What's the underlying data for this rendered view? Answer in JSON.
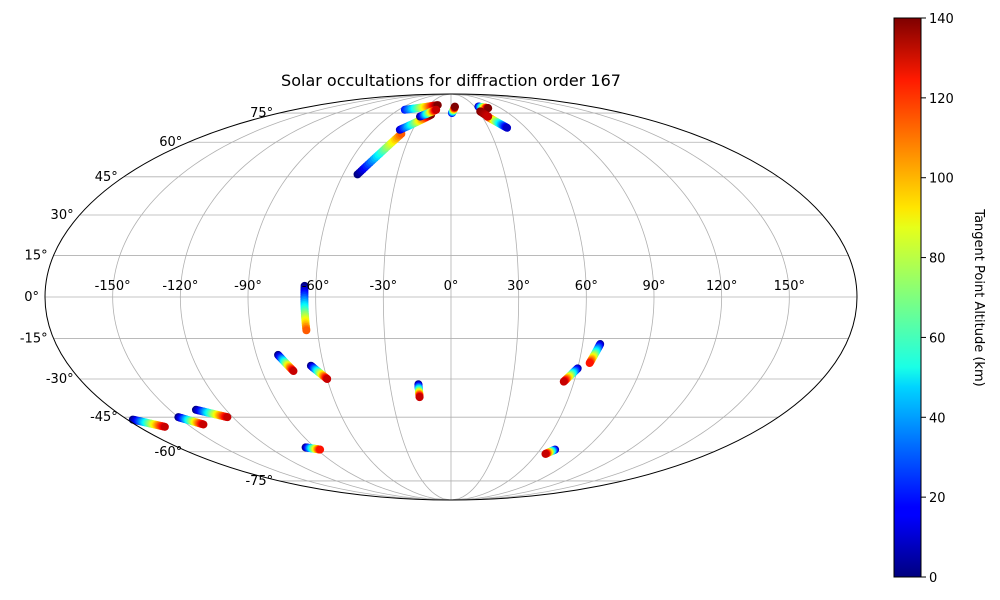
{
  "chart_data": {
    "type": "scatter",
    "projection": "mollweide",
    "title": "Solar occultations for diffraction order 167",
    "grid": true,
    "x_ticks": [
      "-150°",
      "-120°",
      "-90°",
      "-60°",
      "-30°",
      "0°",
      "30°",
      "60°",
      "90°",
      "120°",
      "150°"
    ],
    "x_tick_values": [
      -150,
      -120,
      -90,
      -60,
      -30,
      0,
      30,
      60,
      90,
      120,
      150
    ],
    "y_ticks": [
      "-75°",
      "-60°",
      "-45°",
      "-30°",
      "-15°",
      "0°",
      "15°",
      "30°",
      "45°",
      "60°",
      "75°"
    ],
    "y_tick_values": [
      -75,
      -60,
      -45,
      -30,
      -15,
      0,
      15,
      30,
      45,
      60,
      75
    ],
    "xlim": [
      -180,
      180
    ],
    "ylim": [
      -90,
      90
    ],
    "colorbar": {
      "label": "Tangent Point Altitude (km)",
      "colormap": "jet",
      "range": [
        0,
        140
      ],
      "ticks": [
        "0",
        "20",
        "40",
        "60",
        "80",
        "100",
        "120",
        "140"
      ],
      "tick_values": [
        0,
        20,
        40,
        60,
        80,
        100,
        120,
        140
      ]
    },
    "tracks": [
      {
        "lon_start": -65,
        "lat_start": 4,
        "alt_start": 0,
        "lon_end": -65,
        "lat_end": -12,
        "alt_end": 110
      },
      {
        "lon_start": -52,
        "lat_start": 46,
        "alt_start": 0,
        "lon_end": -37,
        "lat_end": 64,
        "alt_end": 110
      },
      {
        "lon_start": -53,
        "lat_start": 77,
        "alt_start": 20,
        "lon_end": -18,
        "lat_end": 80,
        "alt_end": 140
      },
      {
        "lon_start": -40,
        "lat_start": 66,
        "alt_start": 10,
        "lon_end": -20,
        "lat_end": 74,
        "alt_end": 140
      },
      {
        "lon_start": -30,
        "lat_start": 73,
        "alt_start": 0,
        "lon_end": -17,
        "lat_end": 77,
        "alt_end": 130
      },
      {
        "lon_start": 1,
        "lat_start": 75,
        "alt_start": 15,
        "lon_end": 5,
        "lat_end": 79,
        "alt_end": 140
      },
      {
        "lon_start": 35,
        "lat_start": 79,
        "alt_start": 5,
        "lon_end": 45,
        "lat_end": 78,
        "alt_end": 140
      },
      {
        "lon_start": 35,
        "lat_start": 73,
        "alt_start": 130,
        "lon_end": 45,
        "lat_end": 67,
        "alt_end": 10
      },
      {
        "lon_start": 32,
        "lat_start": 76,
        "alt_start": 140,
        "lon_end": 36,
        "lat_end": 73,
        "alt_end": 130
      },
      {
        "lon_start": 68,
        "lat_start": -17,
        "alt_start": 5,
        "lon_end": 65,
        "lat_end": -24,
        "alt_end": 120
      },
      {
        "lon_start": 60,
        "lat_start": -26,
        "alt_start": 5,
        "lon_end": 55,
        "lat_end": -31,
        "alt_end": 130
      },
      {
        "lon_start": 70,
        "lat_start": -59,
        "alt_start": 5,
        "lon_end": 66,
        "lat_end": -61,
        "alt_end": 130
      },
      {
        "lon_start": -16,
        "lat_start": -32,
        "alt_start": 0,
        "lon_end": -16,
        "lat_end": -37,
        "alt_end": 130
      },
      {
        "lon_start": -80,
        "lat_start": -21,
        "alt_start": 0,
        "lon_end": -75,
        "lat_end": -27,
        "alt_end": 130
      },
      {
        "lon_start": -66,
        "lat_start": -25,
        "alt_start": 0,
        "lon_end": -60,
        "lat_end": -30,
        "alt_end": 130
      },
      {
        "lon_start": -96,
        "lat_start": -58,
        "alt_start": 0,
        "lon_end": -88,
        "lat_end": -59,
        "alt_end": 120
      },
      {
        "lon_start": -136,
        "lat_start": -42,
        "alt_start": 0,
        "lon_end": -123,
        "lat_end": -45,
        "alt_end": 130
      },
      {
        "lon_start": -150,
        "lat_start": -45,
        "alt_start": 0,
        "lon_end": -141,
        "lat_end": -48,
        "alt_end": 130
      },
      {
        "lon_start": -177,
        "lat_start": -46,
        "alt_start": 0,
        "lon_end": -165,
        "lat_end": -49,
        "alt_end": 130
      }
    ]
  }
}
